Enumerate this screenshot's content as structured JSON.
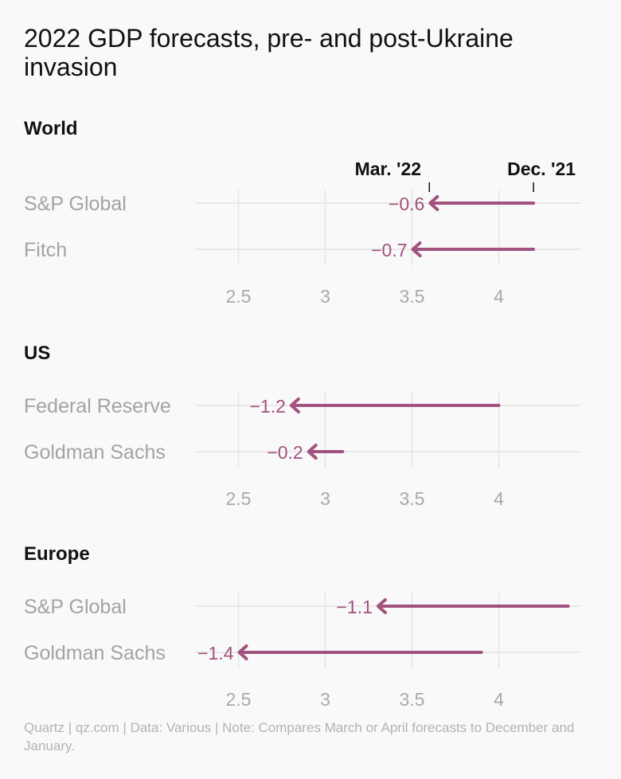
{
  "title": "2022 GDP forecasts, pre- and post-Ukraine invasion",
  "footer": "Quartz | qz.com | Data: Various | Note: Compares March or April forecasts to December and January.",
  "colors": {
    "arrow": "#a1527f",
    "grid": "#e4e4e4",
    "row_label": "#a3a3a3",
    "tick_label": "#a9a9a9"
  },
  "chart_data": [
    {
      "type": "arrow-range",
      "title": "World",
      "legend": {
        "from_label": "Dec. '21",
        "to_label": "Mar. '22"
      },
      "xlim": [
        2.25,
        4.45
      ],
      "x_ticks": [
        2.5,
        3,
        3.5,
        4
      ],
      "x_tick_labels": [
        "2.5",
        "3",
        "3.5",
        "4"
      ],
      "rows": [
        {
          "label": "S&P Global",
          "from": 4.2,
          "to": 3.6,
          "change_label": "−0.6"
        },
        {
          "label": "Fitch",
          "from": 4.2,
          "to": 3.5,
          "change_label": "−0.7"
        }
      ]
    },
    {
      "type": "arrow-range",
      "title": "US",
      "xlim": [
        2.25,
        4.45
      ],
      "x_ticks": [
        2.5,
        3,
        3.5,
        4
      ],
      "x_tick_labels": [
        "2.5",
        "3",
        "3.5",
        "4"
      ],
      "rows": [
        {
          "label": "Federal Reserve",
          "from": 4.0,
          "to": 2.8,
          "change_label": "−1.2"
        },
        {
          "label": "Goldman Sachs",
          "from": 3.1,
          "to": 2.9,
          "change_label": "−0.2"
        }
      ]
    },
    {
      "type": "arrow-range",
      "title": "Europe",
      "xlim": [
        2.25,
        4.45
      ],
      "x_ticks": [
        2.5,
        3,
        3.5,
        4
      ],
      "x_tick_labels": [
        "2.5",
        "3",
        "3.5",
        "4"
      ],
      "rows": [
        {
          "label": "S&P Global",
          "from": 4.4,
          "to": 3.3,
          "change_label": "−1.1"
        },
        {
          "label": "Goldman Sachs",
          "from": 3.9,
          "to": 2.5,
          "change_label": "−1.4"
        }
      ]
    }
  ]
}
